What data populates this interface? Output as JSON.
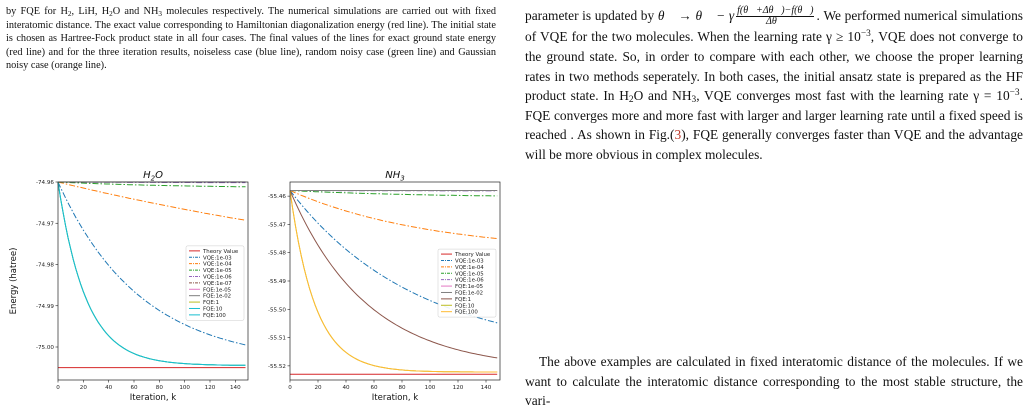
{
  "caption": {
    "seg1": "by FQE for H",
    "sub1": "2",
    "seg2": ", LiH, H",
    "sub2": "2",
    "seg3": "O and NH",
    "sub3": "3",
    "seg4": " molecules respectively. The numerical simulations are carried out with fixed interatomic distance. The exact value corresponding to Hamiltonian diagonalization energy (red line). The initial state is chosen as Hartree-Fock product state in all four cases. The final values of the lines for exact ground state energy (red line) and for the three iteration results, noiseless case (blue line), random noisy case (green line) and Gaussian noisy case (orange line)."
  },
  "right": {
    "p1_a": "parameter is updated by ",
    "eq_lhs": "θ⃗ → θ⃗ − γ",
    "eq_num": "f(θ⃗+Δθ⃗)−f(θ⃗)",
    "eq_den": "Δθ⃗",
    "p1_b": ". We performed numerical simulations of VQE for the two molecules. When the learning rate γ ≥ 10",
    "sup1": "−3",
    "p1_c": ", VQE does not converge to the ground state. So, in order to compare with each other, we choose the proper learning rates in two methods seperately. In both cases, the initial ansatz state is prepared as the HF product state. In H",
    "sub_a": "2",
    "p1_d": "O and NH",
    "sub_b": "3",
    "p1_e": ", VQE converges most fast with the learning rate γ = 10",
    "sup2": "−3",
    "p1_f": ". FQE converges more and more fast with larger and larger learning rate until a fixed speed is reached . As shown in Fig.(",
    "fig_ref": "3",
    "p1_g": "), FQE generally converges faster than VQE and the advantage will be more obvious in complex molecules.",
    "p2": "The above examples are calculated in fixed interatomic distance of the molecules. If we want to calculate the interatomic distance corresponding to the most stable structure, the vari-"
  },
  "chart_data": [
    {
      "type": "line",
      "title": "H2O",
      "title_main": "H",
      "title_sub": "2",
      "title_tail": "O",
      "xlabel": "Iteration, k",
      "ylabel": "Energy (hatree)",
      "xlim": [
        0,
        150
      ],
      "ylim": [
        -75.008,
        -74.96
      ],
      "xticks": [
        0,
        20,
        40,
        60,
        80,
        100,
        120,
        140
      ],
      "yticks": [
        -74.96,
        -74.97,
        -74.98,
        -74.99,
        -75.0
      ],
      "ytick_labels": [
        "-74.96",
        "-74.97",
        "-74.98",
        "-74.99",
        "-75.00"
      ],
      "grid": false,
      "legend": "right",
      "series": [
        {
          "name": "Theory Value",
          "color": "#d62728",
          "dash": "",
          "start": -75.005,
          "end": -75.005,
          "tau": 1
        },
        {
          "name": "VQE:1e-03",
          "color": "#1f77b4",
          "dash": "6,2,1.5,2",
          "start": -74.96,
          "end": -75.004,
          "tau": 65
        },
        {
          "name": "VQE:1e-04",
          "color": "#ff7f0e",
          "dash": "6,2,1.5,2",
          "start": -74.96,
          "end": -74.99,
          "tau": 400
        },
        {
          "name": "VQE:1e-05",
          "color": "#2ca02c",
          "dash": "6,2,1.5,2",
          "start": -74.96,
          "end": -74.9615,
          "tau": 100
        },
        {
          "name": "VQE:1e-06",
          "color": "#9467bd",
          "dash": "6,2,1.5,2",
          "start": -74.96,
          "end": -74.9602,
          "tau": 100
        },
        {
          "name": "VQE:1e-07",
          "color": "#8c564b",
          "dash": "6,2,1.5,2",
          "start": -74.96,
          "end": -74.96,
          "tau": 100
        },
        {
          "name": "FQE:1e-05",
          "color": "#e377c2",
          "dash": "",
          "start": -74.96,
          "end": -74.96,
          "tau": 100
        },
        {
          "name": "FQE:1e-02",
          "color": "#7f7f7f",
          "dash": "",
          "start": -74.96,
          "end": -74.96,
          "tau": 100
        },
        {
          "name": "FQE:1",
          "color": "#bcbd22",
          "dash": "",
          "start": -74.96,
          "end": -75.0045,
          "tau": 22
        },
        {
          "name": "FQE:10",
          "color": "#17becf",
          "dash": "",
          "start": -74.96,
          "end": -75.0045,
          "tau": 22
        },
        {
          "name": "FQE:100",
          "color": "#17becf",
          "dash": "",
          "start": -74.96,
          "end": -75.0045,
          "tau": 22
        }
      ]
    },
    {
      "type": "line",
      "title": "NH3",
      "title_main": "NH",
      "title_sub": "3",
      "title_tail": "",
      "xlabel": "Iteration, k",
      "ylabel": "",
      "xlim": [
        0,
        150
      ],
      "ylim": [
        -55.525,
        -55.455
      ],
      "xticks": [
        0,
        20,
        40,
        60,
        80,
        100,
        120,
        140
      ],
      "yticks": [
        -55.46,
        -55.47,
        -55.48,
        -55.49,
        -55.5,
        -55.51,
        -55.52
      ],
      "ytick_labels": [
        "-55.46",
        "-55.47",
        "-55.48",
        "-55.49",
        "-55.50",
        "-55.51",
        "-55.52"
      ],
      "grid": false,
      "legend": "right",
      "series": [
        {
          "name": "Theory Value",
          "color": "#d62728",
          "dash": "",
          "start": -55.523,
          "end": -55.523,
          "tau": 1
        },
        {
          "name": "VQE:1e-03",
          "color": "#1f77b4",
          "dash": "6,2,1.5,2",
          "start": -55.458,
          "end": -55.516,
          "tau": 90
        },
        {
          "name": "VQE:1e-04",
          "color": "#ff7f0e",
          "dash": "6,2,1.5,2",
          "start": -55.458,
          "end": -55.48,
          "tau": 100
        },
        {
          "name": "VQE:1e-05",
          "color": "#2ca02c",
          "dash": "6,2,1.5,2",
          "start": -55.458,
          "end": -55.4605,
          "tau": 100
        },
        {
          "name": "VQE:1e-06",
          "color": "#9467bd",
          "dash": "6,2,1.5,2",
          "start": -55.458,
          "end": -55.4582,
          "tau": 100
        },
        {
          "name": "FQE:1e-05",
          "color": "#e377c2",
          "dash": "",
          "start": -55.458,
          "end": -55.458,
          "tau": 100
        },
        {
          "name": "FQE:1e-02",
          "color": "#7f7f7f",
          "dash": "",
          "start": -55.458,
          "end": -55.458,
          "tau": 100
        },
        {
          "name": "FQE:1",
          "color": "#8c564b",
          "dash": "",
          "start": -55.458,
          "end": -55.5215,
          "tau": 55
        },
        {
          "name": "FQE:10",
          "color": "#bcbd22",
          "dash": "",
          "start": -55.458,
          "end": -55.5222,
          "tau": 18
        },
        {
          "name": "FQE:100",
          "color": "#ffbb33",
          "dash": "",
          "start": -55.458,
          "end": -55.5222,
          "tau": 18
        }
      ]
    }
  ]
}
